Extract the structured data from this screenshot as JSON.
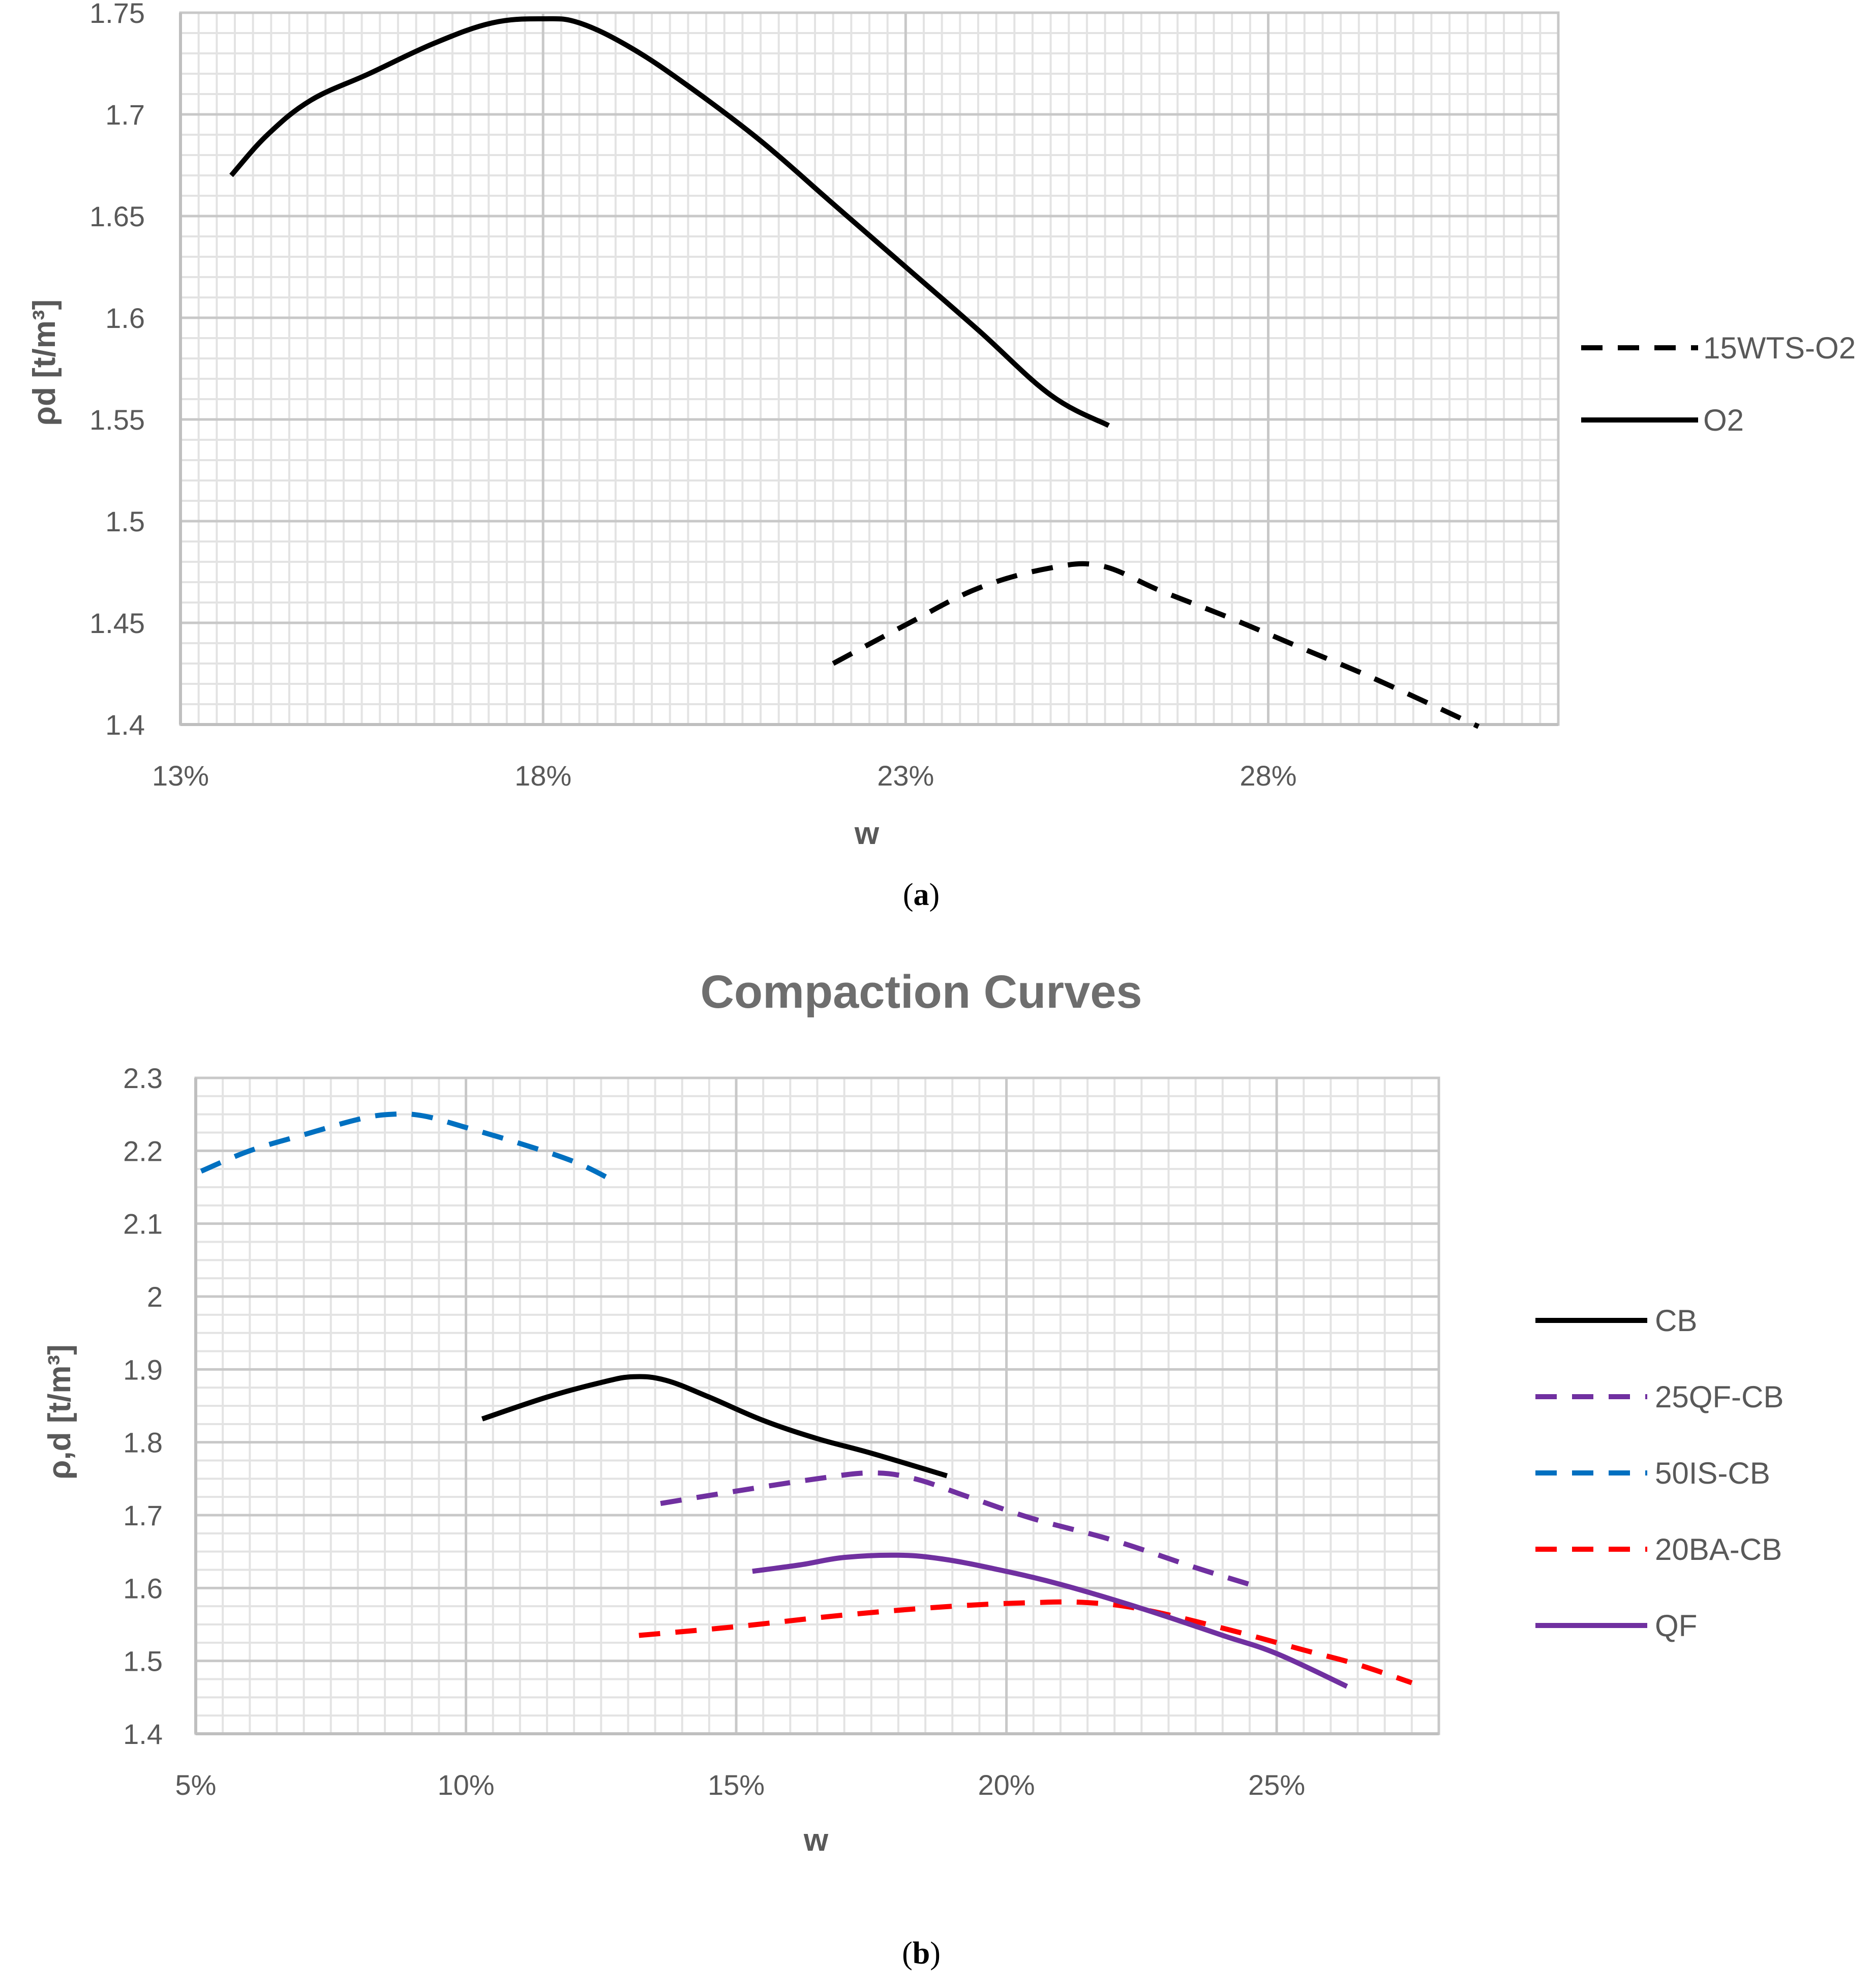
{
  "chart_data": [
    {
      "type": "line",
      "panel_label": "a",
      "title": "",
      "xlabel": "w",
      "ylabel": "ρd [t/m³]",
      "xlim": [
        13,
        32
      ],
      "ylim": [
        1.4,
        1.75
      ],
      "x_ticks": [
        13,
        18,
        23,
        28
      ],
      "x_tick_labels": [
        "13%",
        "18%",
        "23%",
        "28%"
      ],
      "y_ticks": [
        1.4,
        1.45,
        1.5,
        1.55,
        1.6,
        1.65,
        1.7,
        1.75
      ],
      "y_tick_labels": [
        "1.4",
        "1.45",
        "1.5",
        "1.55",
        "1.6",
        "1.65",
        "1.7",
        "1.75"
      ],
      "grid": true,
      "legend_position": "right",
      "series": [
        {
          "name": "15WTS-O2",
          "style": "dashed",
          "color": "#000000",
          "x": [
            22.0,
            23.0,
            24.0,
            25.0,
            25.7,
            26.5,
            27.5,
            28.5,
            29.5,
            30.9
          ],
          "y": [
            1.43,
            1.449,
            1.467,
            1.477,
            1.478,
            1.466,
            1.452,
            1.437,
            1.422,
            1.399
          ]
        },
        {
          "name": "O2",
          "style": "solid",
          "color": "#000000",
          "x": [
            13.7,
            14.2,
            14.8,
            15.6,
            16.5,
            17.3,
            18.0,
            18.5,
            19.2,
            20.0,
            21.0,
            22.0,
            23.0,
            24.0,
            25.0,
            25.8
          ],
          "y": [
            1.67,
            1.69,
            1.707,
            1.72,
            1.735,
            1.745,
            1.747,
            1.745,
            1.733,
            1.714,
            1.687,
            1.656,
            1.625,
            1.594,
            1.562,
            1.547
          ]
        }
      ]
    },
    {
      "type": "line",
      "panel_label": "b",
      "title": "Compaction Curves",
      "xlabel": "w",
      "ylabel": "ρ,d [t/m³]",
      "xlim": [
        5,
        28
      ],
      "ylim": [
        1.4,
        2.3
      ],
      "x_ticks": [
        5,
        10,
        15,
        20,
        25
      ],
      "x_tick_labels": [
        "5%",
        "10%",
        "15%",
        "20%",
        "25%"
      ],
      "y_ticks": [
        1.4,
        1.5,
        1.6,
        1.7,
        1.8,
        1.9,
        2.0,
        2.1,
        2.2,
        2.3
      ],
      "y_tick_labels": [
        "1.4",
        "1.5",
        "1.6",
        "1.7",
        "1.8",
        "1.9",
        "2",
        "2.1",
        "2.2",
        "2.3"
      ],
      "grid": true,
      "legend_position": "right",
      "series": [
        {
          "name": "CB",
          "style": "solid",
          "color": "#000000",
          "x": [
            10.3,
            11.5,
            12.5,
            13.1,
            13.7,
            14.5,
            15.5,
            16.5,
            17.5,
            18.9
          ],
          "y": [
            1.832,
            1.862,
            1.882,
            1.89,
            1.885,
            1.862,
            1.83,
            1.805,
            1.785,
            1.754
          ]
        },
        {
          "name": "25QF-CB",
          "style": "dashed",
          "color": "#7030a0",
          "x": [
            13.6,
            15.0,
            16.5,
            17.5,
            18.3,
            19.3,
            20.5,
            22.0,
            23.5,
            24.5
          ],
          "y": [
            1.716,
            1.733,
            1.75,
            1.758,
            1.75,
            1.725,
            1.695,
            1.665,
            1.628,
            1.605
          ]
        },
        {
          "name": "50IS-CB",
          "style": "dashed",
          "color": "#0070c0",
          "x": [
            5.1,
            6.0,
            7.0,
            8.0,
            8.6,
            9.2,
            10.0,
            11.0,
            12.0,
            12.7
          ],
          "y": [
            2.172,
            2.2,
            2.222,
            2.243,
            2.25,
            2.248,
            2.232,
            2.21,
            2.185,
            2.16
          ]
        },
        {
          "name": "20BA-CB",
          "style": "dashed",
          "color": "#ff0000",
          "x": [
            13.2,
            15.0,
            17.0,
            19.0,
            20.5,
            21.5,
            22.5,
            24.0,
            25.5,
            26.5,
            27.5
          ],
          "y": [
            1.535,
            1.547,
            1.563,
            1.575,
            1.58,
            1.58,
            1.571,
            1.545,
            1.515,
            1.495,
            1.47
          ]
        },
        {
          "name": "QF",
          "style": "solid",
          "color": "#7030a0",
          "x": [
            15.3,
            16.2,
            17.0,
            18.0,
            18.8,
            19.8,
            21.0,
            22.5,
            24.0,
            25.0,
            26.3
          ],
          "y": [
            1.623,
            1.632,
            1.642,
            1.645,
            1.64,
            1.626,
            1.605,
            1.572,
            1.535,
            1.51,
            1.465
          ]
        }
      ]
    }
  ],
  "captions": {
    "a": {
      "open": "(",
      "label": "a",
      "close": ")"
    },
    "b": {
      "open": "(",
      "label": "b",
      "close": ")"
    }
  }
}
